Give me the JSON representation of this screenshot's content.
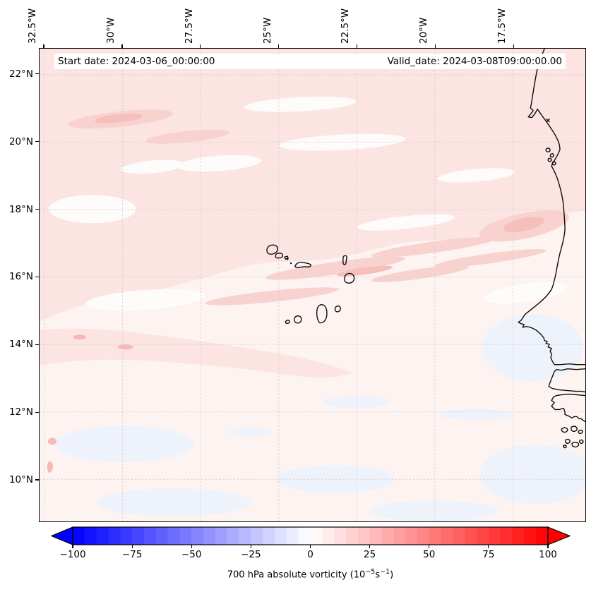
{
  "annotations": {
    "start_date": "Start date: 2024-03-06_00:00:00",
    "valid_date": "Valid_date: 2024-03-08T09:00:00.00"
  },
  "chart_data": {
    "type": "heatmap",
    "subtype": "filled-contour geographic map (matplotlib/cartopy style)",
    "field": "700 hPa absolute vorticity",
    "units": "10^-5 s^-1",
    "extent": {
      "lon_min": -32.66,
      "lon_max": -15.18,
      "lat_min": 8.75,
      "lat_max": 22.77
    },
    "x_ticks": [
      {
        "lon": -32.5,
        "label": "32.5°W"
      },
      {
        "lon": -30.0,
        "label": "30°W"
      },
      {
        "lon": -27.5,
        "label": "27.5°W"
      },
      {
        "lon": -25.0,
        "label": "25°W"
      },
      {
        "lon": -22.5,
        "label": "22.5°W"
      },
      {
        "lon": -20.0,
        "label": "20°W"
      },
      {
        "lon": -17.5,
        "label": "17.5°W"
      }
    ],
    "y_ticks": [
      {
        "lat": 22,
        "label": "22°N"
      },
      {
        "lat": 20,
        "label": "20°N"
      },
      {
        "lat": 18,
        "label": "18°N"
      },
      {
        "lat": 16,
        "label": "16°N"
      },
      {
        "lat": 14,
        "label": "14°N"
      },
      {
        "lat": 12,
        "label": "12°N"
      },
      {
        "lat": 10,
        "label": "10°N"
      }
    ],
    "grid": {
      "visible": true,
      "style": "dashed",
      "color": "#d9d2d2"
    },
    "colorbar": {
      "vmin": -100,
      "vmax": 100,
      "level_step": 5,
      "colormap": "bwr",
      "extend": "both",
      "ticks": [
        {
          "value": -100,
          "label": "−100"
        },
        {
          "value": -75,
          "label": "−75"
        },
        {
          "value": -50,
          "label": "−50"
        },
        {
          "value": -25,
          "label": "−25"
        },
        {
          "value": 0,
          "label": "0"
        },
        {
          "value": 25,
          "label": "25"
        },
        {
          "value": 50,
          "label": "50"
        },
        {
          "value": 75,
          "label": "75"
        },
        {
          "value": 100,
          "label": "100"
        }
      ],
      "label_parts": {
        "prefix": "700 hPa absolute vorticity (10",
        "exp1": "−5",
        "mid": "s",
        "exp2": "−1",
        "suffix": ")"
      }
    },
    "field_summary": [
      {
        "region": "broad zonal band ~14°N–23°N across whole domain",
        "value_estimate_1e-5_per_s": "+3 to +12"
      },
      {
        "region": "diagonal SW–NE streaks near 15.5°N–18°N and near 20°N–21°N west",
        "value_estimate_1e-5_per_s": "+10 to +18"
      },
      {
        "region": "south of ~14°N and coastal ocean 9°N–13°N",
        "value_estimate_1e-5_per_s": "−4 to +3 (pale, patches slightly negative)"
      }
    ],
    "geography": {
      "islands": "Cape Verde archipelago (outlined)",
      "coast": "West African coastline: Western Sahara, Mauritania (Cap Blanc, Banc d'Arguin), Senegal (Cap-Vert/Dakar), Gambia river, Casamance, Guinea-Bissau with Bijagós islands"
    },
    "annotations": [
      "Start date: 2024-03-06_00:00:00",
      "Valid_date: 2024-03-08T09:00:00.00"
    ]
  },
  "colors": {
    "base": "#fdf3f1",
    "pink_wash": "#fbe4e1",
    "pink_streak": "#f8d2cf",
    "pink_deep": "#f5bfbc",
    "white_patch": "#fefcfb",
    "blue_patch": "#eef3fb",
    "coast": "#0d0d0d",
    "under_color": "#0000ff",
    "over_color": "#ff0000"
  }
}
